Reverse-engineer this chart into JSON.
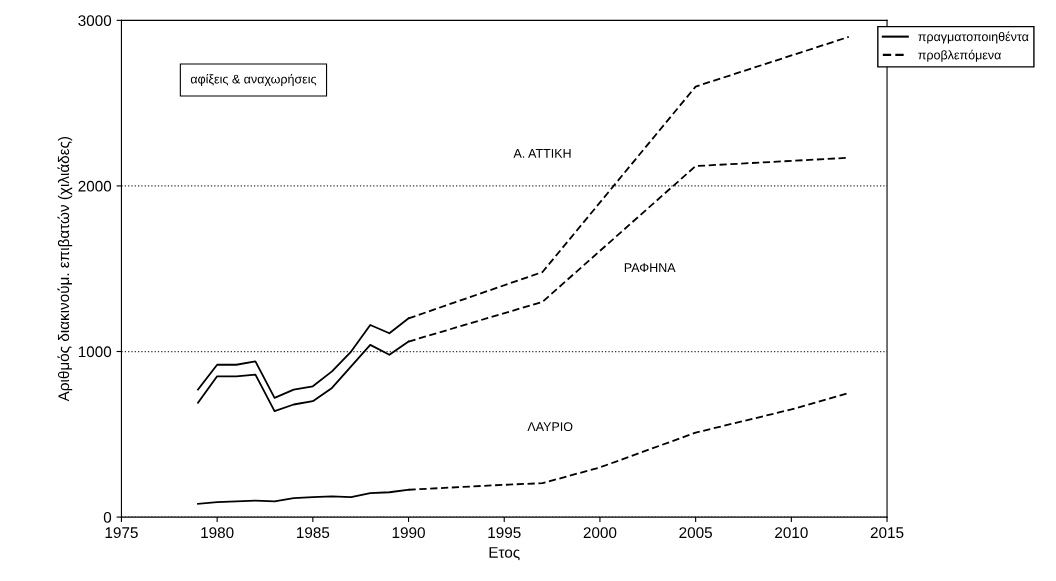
{
  "chart_data": {
    "type": "line",
    "xlabel": "Ετος",
    "ylabel": "Αριθμός διακινούμ. επιβατών (χιλιάδες)",
    "xlim": [
      1975,
      2015
    ],
    "xticks": [
      1975,
      1980,
      1985,
      1990,
      1995,
      2000,
      2005,
      2010,
      2015
    ],
    "ylim": [
      0,
      3000
    ],
    "yticks": [
      0,
      1000,
      2000,
      3000
    ],
    "grid": "y",
    "legend": "top right",
    "marker": "none",
    "annotations": [
      "αφίξεις & αναχωρήσεις",
      "Α. ΑΤΤΙΚΗ",
      "ΡΑΦΗΝΑ",
      "ΛΑΥΡΙΟ"
    ],
    "series": [
      {
        "name": "πραγματοποιηθέντα",
        "color": "#000000",
        "line_style": "solid",
        "x": [
          1979,
          1980,
          1981,
          1982,
          1983,
          1984,
          1985,
          1986,
          1987,
          1988,
          1989,
          1990
        ],
        "values": [
          770,
          920,
          920,
          940,
          720,
          770,
          790,
          880,
          1000,
          1160,
          1110,
          1200
        ]
      },
      {
        "name": "προβλεπόμενα",
        "color": "#000000",
        "line_style": "dashed",
        "x": [
          1990,
          1997,
          2005,
          2013
        ],
        "values": [
          1200,
          1480,
          2600,
          2900
        ]
      },
      {
        "color": "#000000",
        "line_style": "solid",
        "x": [
          1979,
          1980,
          1981,
          1982,
          1983,
          1984,
          1985,
          1986,
          1987,
          1988,
          1989,
          1990
        ],
        "values": [
          690,
          850,
          850,
          860,
          640,
          680,
          700,
          780,
          910,
          1040,
          980,
          1060
        ]
      },
      {
        "color": "#000000",
        "line_style": "dashed",
        "x": [
          1990,
          1997,
          2005,
          2013
        ],
        "values": [
          1060,
          1300,
          2120,
          2170
        ]
      },
      {
        "color": "#000000",
        "line_style": "solid",
        "x": [
          1979,
          1980,
          1981,
          1982,
          1983,
          1984,
          1985,
          1986,
          1987,
          1988,
          1989,
          1990
        ],
        "values": [
          80,
          90,
          95,
          100,
          95,
          115,
          120,
          125,
          120,
          145,
          150,
          165
        ]
      },
      {
        "color": "#000000",
        "line_style": "dashed",
        "x": [
          1990,
          1995,
          1997,
          2000,
          2005,
          2010,
          2013
        ],
        "values": [
          165,
          195,
          205,
          300,
          510,
          650,
          750
        ]
      }
    ]
  }
}
